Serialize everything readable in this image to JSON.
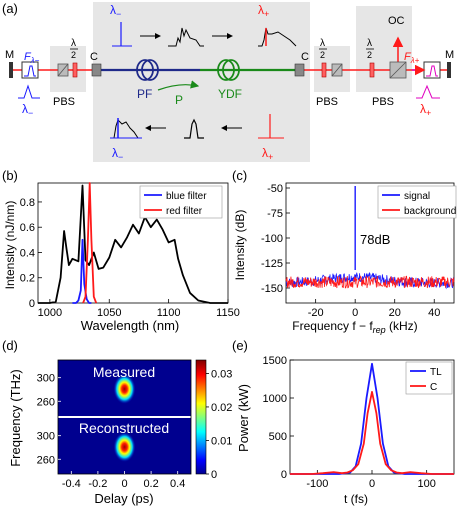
{
  "panels": {
    "a": {
      "label": "(a)",
      "mirror_left": "M",
      "mirror_right": "M",
      "f_lambda_minus": "F",
      "f_lambda_minus_sub": "λ−",
      "f_lambda_plus": "F",
      "f_lambda_plus_sub": "λ+",
      "lambda_minus": "λ",
      "lambda_minus_sub": "−",
      "lambda_plus": "λ",
      "lambda_plus_sub": "+",
      "half_wave": "λ",
      "half_wave_den": "2",
      "pbs": "PBS",
      "coupler": "C",
      "pf": "PF",
      "ydf": "YDF",
      "pump": "P",
      "output_coupler": "OC"
    },
    "b": {
      "label": "(b)",
      "ylabel": "Intensity (nJ/nm)",
      "xlabel": "Wavelength (nm)",
      "legend": [
        "blue filter",
        "red filter"
      ]
    },
    "c": {
      "label": "(c)",
      "ylabel": "Intensity (dB)",
      "xlabel": "Frequency f − f",
      "xlabel_sub": "rep",
      "xlabel_unit": " (kHz)",
      "legend": [
        "signal",
        "background"
      ],
      "annotation": "78dB"
    },
    "d": {
      "label": "(d)",
      "ylabel": "Frequency (THz)",
      "xlabel": "Delay (ps)",
      "measured": "Measured",
      "reconstructed": "Reconstructed"
    },
    "e": {
      "label": "(e)",
      "ylabel": "Power (kW)",
      "xlabel": "t (fs)",
      "legend": [
        "TL",
        "C"
      ]
    }
  },
  "colors": {
    "blue": "#1a1aff",
    "red": "#ff1a1a",
    "green": "#1a8a1a",
    "navy": "#1f2a8a",
    "grey_box": "#e6e6e6"
  },
  "chart_data": [
    {
      "panel": "b",
      "type": "line",
      "xlim": [
        990,
        1150
      ],
      "ylim": [
        0,
        0.95
      ],
      "xticks": [
        1000,
        1050,
        1100,
        1150
      ],
      "yticks": [
        0,
        0.2,
        0.4,
        0.6,
        0.8
      ],
      "series": [
        {
          "name": "blue filter",
          "color": "#1a1aff",
          "x": [
            1019,
            1022,
            1024,
            1026,
            1027.5,
            1029,
            1031,
            1033,
            1035
          ],
          "y": [
            0,
            0,
            0.02,
            0.1,
            0.5,
            0.15,
            0.03,
            0,
            0
          ]
        },
        {
          "name": "red filter",
          "color": "#ff1a1a",
          "x": [
            1028,
            1030,
            1032,
            1033.5,
            1035,
            1037,
            1039
          ],
          "y": [
            0,
            0.05,
            0.5,
            0.95,
            0.5,
            0.05,
            0
          ]
        },
        {
          "name": "",
          "color": "#000000",
          "x": [
            990,
            1000,
            1005,
            1009,
            1012,
            1014,
            1016,
            1019,
            1024,
            1027.5,
            1030,
            1033,
            1037,
            1041,
            1045,
            1050,
            1055,
            1060,
            1065,
            1070,
            1075,
            1080,
            1085,
            1090,
            1095,
            1100,
            1105,
            1108,
            1112,
            1118,
            1125,
            1135,
            1150
          ],
          "y": [
            0,
            0,
            0.01,
            0.2,
            0.57,
            0.43,
            0.3,
            0.35,
            0.33,
            0.93,
            0.34,
            0.3,
            0.4,
            0.27,
            0.28,
            0.36,
            0.5,
            0.44,
            0.52,
            0.62,
            0.55,
            0.68,
            0.6,
            0.66,
            0.58,
            0.48,
            0.5,
            0.35,
            0.22,
            0.08,
            0.02,
            0,
            0
          ]
        }
      ]
    },
    {
      "panel": "c",
      "type": "line",
      "xlim": [
        -35,
        50
      ],
      "ylim": [
        -165,
        -45
      ],
      "xticks": [
        -20,
        0,
        20,
        40
      ],
      "yticks": [
        -150,
        -125,
        -100,
        -75,
        -50
      ],
      "series": [
        {
          "name": "signal",
          "color": "#1a1aff",
          "peak_x": 0,
          "peak_y": -48,
          "floor": [
            -150,
            -140
          ]
        },
        {
          "name": "background",
          "color": "#ff1a1a",
          "floor": [
            -150,
            -138
          ]
        }
      ]
    },
    {
      "panel": "d",
      "type": "heatmap",
      "xlim": [
        -0.5,
        0.5
      ],
      "xticks": [
        -0.4,
        -0.2,
        0,
        0.2,
        0.4
      ],
      "yticks": [
        260,
        300
      ],
      "colorbar_ticks": [
        0,
        0.01,
        0.02,
        0.03
      ],
      "colorbar_range": [
        0,
        0.034
      ]
    },
    {
      "panel": "e",
      "type": "line",
      "xlim": [
        -150,
        150
      ],
      "ylim": [
        0,
        1500
      ],
      "xticks": [
        -100,
        0,
        100
      ],
      "yticks": [
        0,
        500,
        1000,
        1500
      ],
      "series": [
        {
          "name": "TL",
          "color": "#1a1aff",
          "x": [
            -150,
            -60,
            -40,
            -30,
            -20,
            -10,
            0,
            10,
            20,
            30,
            40,
            60,
            150
          ],
          "y": [
            0,
            0,
            20,
            100,
            400,
            1000,
            1450,
            1000,
            400,
            100,
            20,
            0,
            0
          ]
        },
        {
          "name": "C",
          "color": "#ff1a1a",
          "x": [
            -150,
            -110,
            -90,
            -70,
            -55,
            -45,
            -35,
            -25,
            -15,
            -8,
            0,
            8,
            15,
            25,
            35,
            45,
            55,
            70,
            90,
            110,
            150
          ],
          "y": [
            0,
            0,
            10,
            25,
            10,
            20,
            50,
            130,
            400,
            800,
            1080,
            800,
            400,
            130,
            50,
            20,
            10,
            25,
            10,
            0,
            0
          ]
        }
      ]
    }
  ]
}
